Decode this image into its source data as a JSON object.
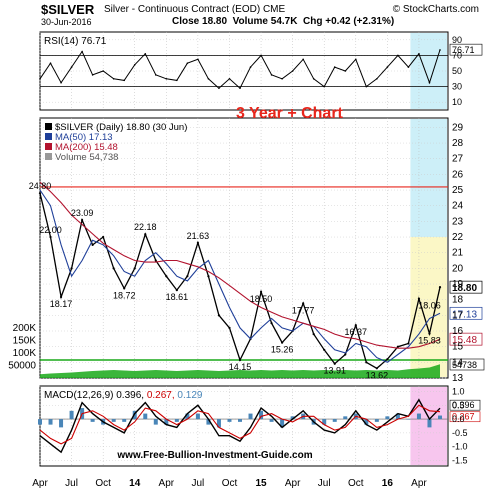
{
  "header": {
    "symbol": "$SILVER",
    "description": "Silver - Continuous Contract (EOD)",
    "exchange": "CME",
    "brand": "© StockCharts.com",
    "date": "30-Jun-2016",
    "close_label": "Close",
    "close_value": "18.80",
    "volume_label": "Volume",
    "volume_value": "54.7K",
    "chg_label": "Chg",
    "chg_value": "+0.42 (+2.31%)"
  },
  "overlay_title": "3 Year + Chart",
  "footer_url": "www.Free-Bullion-Investment-Guide.com",
  "colors": {
    "accent": "#e8261c",
    "price": "#000000",
    "ma50": "#1f3f99",
    "ma200": "#b2132e",
    "volume": "#19a919",
    "macd_signal": "#cc0000",
    "histogram": "#4a86b8",
    "highlight_cyan": "#cdeff8",
    "highlight_yellow": "#fbf7c6",
    "highlight_pink": "#f7c6ee"
  },
  "chart_data": [
    {
      "type": "line",
      "panel": "RSI",
      "legend": "RSI(14) 76.71",
      "last_value": "76.71",
      "y_ticks": [
        "90",
        "70",
        "50",
        "30",
        "10"
      ],
      "ylim": [
        0,
        100
      ],
      "reference_lines": [
        70,
        30
      ],
      "x": [
        "2013-04",
        "2013-05",
        "2013-06",
        "2013-07",
        "2013-08",
        "2013-09",
        "2013-10",
        "2013-11",
        "2013-12",
        "2014-01",
        "2014-02",
        "2014-03",
        "2014-04",
        "2014-05",
        "2014-06",
        "2014-07",
        "2014-08",
        "2014-09",
        "2014-10",
        "2014-11",
        "2014-12",
        "2015-01",
        "2015-02",
        "2015-03",
        "2015-04",
        "2015-05",
        "2015-06",
        "2015-07",
        "2015-08",
        "2015-09",
        "2015-10",
        "2015-11",
        "2015-12",
        "2016-01",
        "2016-02",
        "2016-03",
        "2016-04",
        "2016-05",
        "2016-06"
      ],
      "values": [
        40,
        60,
        35,
        55,
        75,
        45,
        50,
        40,
        38,
        58,
        72,
        45,
        40,
        38,
        60,
        65,
        40,
        28,
        40,
        28,
        55,
        70,
        45,
        40,
        50,
        65,
        40,
        30,
        55,
        50,
        65,
        30,
        40,
        55,
        70,
        55,
        72,
        35,
        77
      ]
    },
    {
      "type": "line",
      "panel": "Price",
      "legend": [
        "$SILVER (Daily) 18.80 (30 Jun)",
        "MA(50) 17.13",
        "MA(200) 15.48",
        "Volume 54,738"
      ],
      "y_ticks": [
        "29",
        "28",
        "27",
        "26",
        "25",
        "24",
        "23",
        "22",
        "21",
        "20",
        "19",
        "18",
        "17",
        "16",
        "15",
        "14",
        "13"
      ],
      "ylim": [
        13,
        29.6
      ],
      "volume_ticks": [
        "200K",
        "150K",
        "100K",
        "50000"
      ],
      "horizontal_line": 25.2,
      "last_labels": [
        "18.80",
        "17.13",
        "15.48",
        "54738"
      ],
      "annotations": [
        {
          "text": "24.80",
          "x": "2013-04",
          "y": 24.8
        },
        {
          "text": "22.00",
          "x": "2013-05",
          "y": 22.0
        },
        {
          "text": "18.17",
          "x": "2013-06",
          "y": 18.17
        },
        {
          "text": "23.09",
          "x": "2013-08",
          "y": 23.09
        },
        {
          "text": "18.72",
          "x": "2013-12",
          "y": 18.72
        },
        {
          "text": "22.18",
          "x": "2014-02",
          "y": 22.18
        },
        {
          "text": "18.61",
          "x": "2014-05",
          "y": 18.61
        },
        {
          "text": "21.63",
          "x": "2014-07",
          "y": 21.63
        },
        {
          "text": "14.15",
          "x": "2014-11",
          "y": 14.15
        },
        {
          "text": "18.50",
          "x": "2015-01",
          "y": 18.5
        },
        {
          "text": "15.26",
          "x": "2015-03",
          "y": 15.26
        },
        {
          "text": "17.77",
          "x": "2015-05",
          "y": 17.77
        },
        {
          "text": "13.91",
          "x": "2015-08",
          "y": 13.91
        },
        {
          "text": "16.37",
          "x": "2015-10",
          "y": 16.37
        },
        {
          "text": "13.62",
          "x": "2015-12",
          "y": 13.62
        },
        {
          "text": "18.06",
          "x": "2016-05",
          "y": 18.06
        },
        {
          "text": "15.83",
          "x": "2016-05",
          "y": 15.83
        }
      ],
      "x": [
        "2013-04",
        "2013-05",
        "2013-06",
        "2013-07",
        "2013-08",
        "2013-09",
        "2013-10",
        "2013-11",
        "2013-12",
        "2014-01",
        "2014-02",
        "2014-03",
        "2014-04",
        "2014-05",
        "2014-06",
        "2014-07",
        "2014-08",
        "2014-09",
        "2014-10",
        "2014-11",
        "2014-12",
        "2015-01",
        "2015-02",
        "2015-03",
        "2015-04",
        "2015-05",
        "2015-06",
        "2015-07",
        "2015-08",
        "2015-09",
        "2015-10",
        "2015-11",
        "2015-12",
        "2016-01",
        "2016-02",
        "2016-03",
        "2016-04",
        "2016-05",
        "2016-06"
      ],
      "series": [
        {
          "name": "$SILVER (Daily)",
          "values": [
            24.8,
            22.0,
            18.17,
            20.0,
            23.09,
            21.5,
            22.0,
            20.0,
            18.72,
            20.0,
            22.18,
            20.5,
            19.5,
            18.61,
            19.5,
            21.63,
            19.5,
            17.0,
            16.2,
            14.15,
            15.5,
            18.5,
            16.5,
            15.26,
            16.0,
            17.77,
            15.8,
            14.8,
            13.91,
            14.5,
            16.37,
            14.0,
            13.62,
            14.2,
            15.0,
            15.2,
            18.06,
            15.83,
            18.8
          ]
        },
        {
          "name": "MA(50)",
          "values": [
            25.0,
            24.0,
            21.5,
            19.5,
            20.5,
            21.8,
            21.5,
            20.8,
            19.8,
            19.5,
            20.5,
            21.0,
            20.3,
            19.5,
            19.2,
            20.0,
            20.5,
            19.0,
            17.5,
            16.2,
            15.5,
            16.2,
            16.8,
            16.2,
            16.0,
            16.5,
            16.3,
            15.5,
            14.8,
            14.6,
            15.2,
            15.0,
            14.3,
            14.0,
            14.5,
            15.0,
            15.8,
            16.8,
            17.13
          ]
        },
        {
          "name": "MA(200)",
          "values": [
            25.5,
            24.9,
            24.2,
            23.4,
            22.8,
            22.2,
            21.6,
            21.2,
            20.8,
            20.5,
            20.4,
            20.4,
            20.5,
            20.5,
            20.3,
            20.1,
            19.8,
            19.4,
            18.9,
            18.4,
            17.9,
            17.5,
            17.2,
            16.9,
            16.7,
            16.5,
            16.3,
            16.1,
            15.8,
            15.6,
            15.5,
            15.3,
            15.1,
            15.0,
            14.9,
            14.9,
            15.0,
            15.2,
            15.48
          ]
        }
      ],
      "volume": [
        15000,
        18000,
        20000,
        22000,
        25000,
        28000,
        30000,
        32000,
        30000,
        28000,
        30000,
        32000,
        30000,
        28000,
        30000,
        32000,
        30000,
        28000,
        30000,
        32000,
        30000,
        32000,
        30000,
        32000,
        30000,
        32000,
        30000,
        32000,
        30000,
        32000,
        30000,
        32000,
        30000,
        32000,
        30000,
        35000,
        38000,
        42000,
        54738
      ],
      "volume_ylim": [
        0,
        240000
      ]
    },
    {
      "type": "line",
      "panel": "MACD",
      "legend": [
        "MACD(12,26,9)",
        "0.396,",
        "0.267,",
        "0.129"
      ],
      "last_labels": [
        "0.396",
        "0.267"
      ],
      "y_ticks": [
        "1.0",
        "0.5",
        "0.0",
        "-0.5",
        "-1.0",
        "-1.5"
      ],
      "ylim": [
        -1.7,
        1.2
      ],
      "x": [
        "2013-04",
        "2013-05",
        "2013-06",
        "2013-07",
        "2013-08",
        "2013-09",
        "2013-10",
        "2013-11",
        "2013-12",
        "2014-01",
        "2014-02",
        "2014-03",
        "2014-04",
        "2014-05",
        "2014-06",
        "2014-07",
        "2014-08",
        "2014-09",
        "2014-10",
        "2014-11",
        "2014-12",
        "2015-01",
        "2015-02",
        "2015-03",
        "2015-04",
        "2015-05",
        "2015-06",
        "2015-07",
        "2015-08",
        "2015-09",
        "2015-10",
        "2015-11",
        "2015-12",
        "2016-01",
        "2016-02",
        "2016-03",
        "2016-04",
        "2016-05",
        "2016-06"
      ],
      "series": [
        {
          "name": "MACD",
          "values": [
            -0.6,
            -0.9,
            -1.2,
            -0.4,
            0.6,
            0.2,
            -0.1,
            -0.3,
            -0.5,
            0.2,
            0.6,
            0.1,
            -0.2,
            -0.3,
            0.2,
            0.5,
            0.0,
            -0.6,
            -0.6,
            -0.8,
            -0.3,
            0.4,
            0.1,
            -0.3,
            0.0,
            0.3,
            -0.1,
            -0.4,
            -0.5,
            -0.2,
            0.3,
            -0.2,
            -0.4,
            -0.1,
            0.2,
            0.1,
            0.7,
            0.0,
            0.396
          ]
        },
        {
          "name": "Signal",
          "values": [
            -0.4,
            -0.7,
            -0.9,
            -0.7,
            0.2,
            0.3,
            0.1,
            -0.2,
            -0.4,
            -0.1,
            0.4,
            0.3,
            0.0,
            -0.2,
            0.0,
            0.3,
            0.2,
            -0.3,
            -0.5,
            -0.7,
            -0.5,
            0.1,
            0.2,
            0.0,
            -0.1,
            0.1,
            0.1,
            -0.2,
            -0.4,
            -0.3,
            0.1,
            0.0,
            -0.3,
            -0.2,
            0.0,
            0.1,
            0.5,
            0.3,
            0.267
          ]
        }
      ]
    }
  ],
  "x_axis_labels": [
    {
      "text": "Apr",
      "x": "2013-04"
    },
    {
      "text": "Jul",
      "x": "2013-07"
    },
    {
      "text": "Oct",
      "x": "2013-10"
    },
    {
      "text": "14",
      "x": "2014-01",
      "bold": true
    },
    {
      "text": "Apr",
      "x": "2014-04"
    },
    {
      "text": "Jul",
      "x": "2014-07"
    },
    {
      "text": "Oct",
      "x": "2014-10"
    },
    {
      "text": "15",
      "x": "2015-01",
      "bold": true
    },
    {
      "text": "Apr",
      "x": "2015-04"
    },
    {
      "text": "Jul",
      "x": "2015-07"
    },
    {
      "text": "Oct",
      "x": "2015-10"
    },
    {
      "text": "16",
      "x": "2016-01",
      "bold": true
    },
    {
      "text": "Apr",
      "x": "2016-04"
    }
  ]
}
